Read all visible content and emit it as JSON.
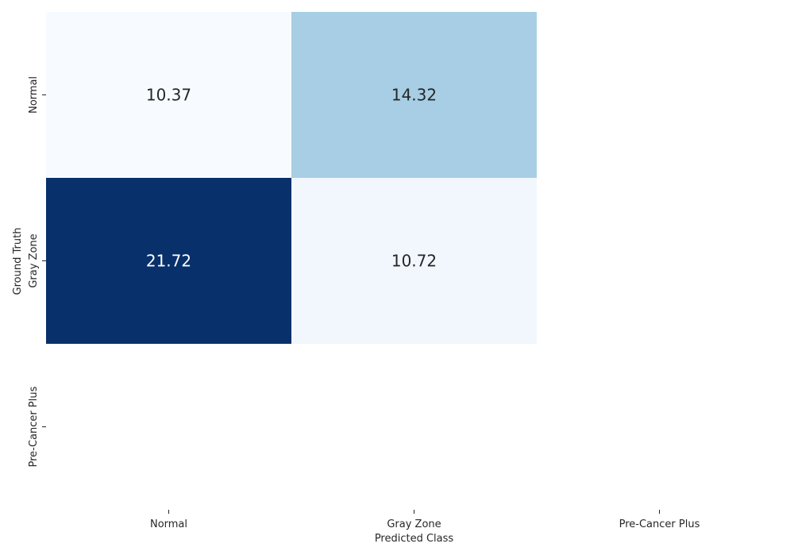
{
  "chart_data": {
    "type": "heatmap",
    "title": "",
    "xlabel": "Predicted Class",
    "ylabel": "Ground Truth",
    "x_categories": [
      "Normal",
      "Gray Zone",
      "Pre-Cancer Plus"
    ],
    "y_categories": [
      "Normal",
      "Gray Zone",
      "Pre-Cancer Plus"
    ],
    "colormap": "Blues",
    "value_range": [
      10.37,
      21.72
    ],
    "show_colorbar": false,
    "grid": false,
    "cells": [
      {
        "row": "Normal",
        "col": "Normal",
        "value": 10.37,
        "label": "10.37"
      },
      {
        "row": "Normal",
        "col": "Gray Zone",
        "value": 14.32,
        "label": "14.32"
      },
      {
        "row": "Gray Zone",
        "col": "Normal",
        "value": 21.72,
        "label": "21.72"
      },
      {
        "row": "Gray Zone",
        "col": "Gray Zone",
        "value": 10.72,
        "label": "10.72"
      }
    ]
  }
}
